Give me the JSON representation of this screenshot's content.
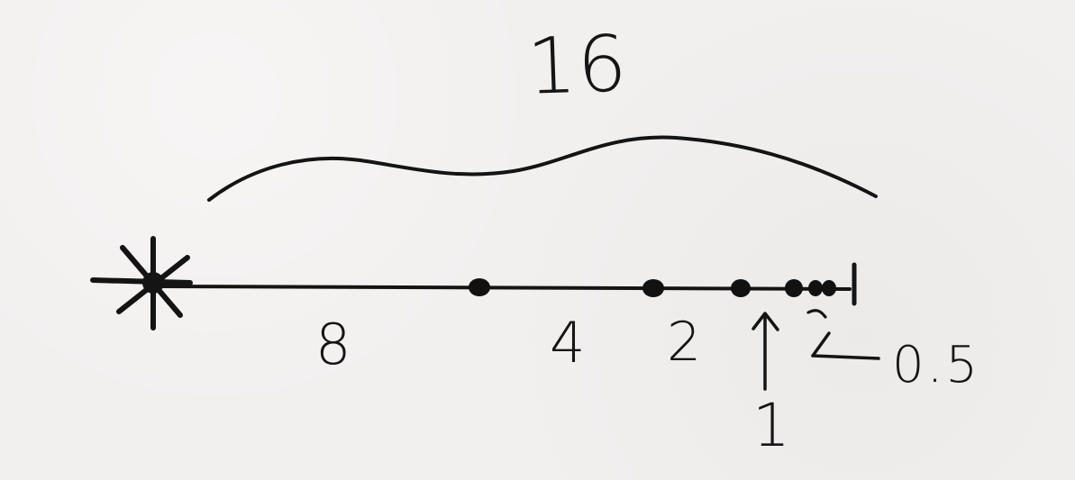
{
  "diagram": {
    "total_label": "16",
    "segment_labels": {
      "first": "8",
      "second": "4",
      "third": "2",
      "fourth": "1",
      "fifth": "0.5"
    }
  }
}
